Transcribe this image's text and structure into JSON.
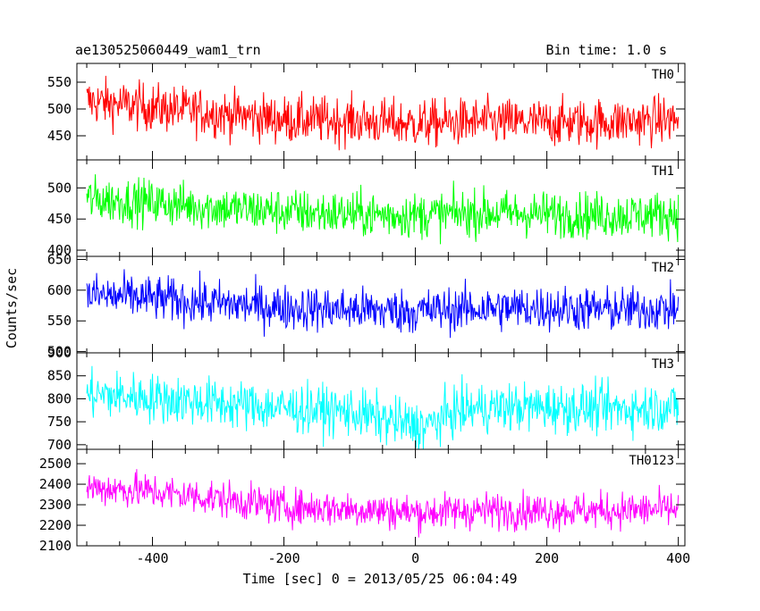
{
  "chart_data": {
    "type": "line",
    "title_left": "ae130525060449_wam1_trn",
    "title_right": "Bin time: 1.0 s",
    "xlabel": "Time [sec] 0 = 2013/05/25 06:04:49",
    "ylabel": "Counts/sec",
    "xlim": [
      -515,
      410
    ],
    "xticks": [
      -400,
      -200,
      0,
      200,
      400
    ],
    "x_range": [
      -500,
      400
    ],
    "bin_time": 1.0,
    "panels": [
      {
        "name": "TH0",
        "color": "#ff0000",
        "ylim": [
          405,
          585
        ],
        "yticks": [
          450,
          500,
          550
        ],
        "trend": [
          [
            -500,
            515
          ],
          [
            -420,
            505
          ],
          [
            -300,
            492
          ],
          [
            -200,
            480
          ],
          [
            -100,
            478
          ],
          [
            0,
            472
          ],
          [
            100,
            476
          ],
          [
            200,
            474
          ],
          [
            300,
            476
          ],
          [
            400,
            480
          ]
        ],
        "noise_amplitude": 40
      },
      {
        "name": "TH1",
        "color": "#00ff00",
        "ylim": [
          390,
          545
        ],
        "yticks": [
          400,
          450,
          500
        ],
        "trend": [
          [
            -500,
            482
          ],
          [
            -420,
            478
          ],
          [
            -300,
            468
          ],
          [
            -200,
            462
          ],
          [
            -100,
            458
          ],
          [
            0,
            456
          ],
          [
            100,
            460
          ],
          [
            200,
            458
          ],
          [
            300,
            456
          ],
          [
            400,
            458
          ]
        ],
        "noise_amplitude": 33
      },
      {
        "name": "TH2",
        "color": "#0000ff",
        "ylim": [
          498,
          655
        ],
        "yticks": [
          500,
          550,
          600,
          650
        ],
        "trend": [
          [
            -500,
            592
          ],
          [
            -420,
            588
          ],
          [
            -300,
            578
          ],
          [
            -200,
            572
          ],
          [
            -100,
            568
          ],
          [
            0,
            566
          ],
          [
            100,
            570
          ],
          [
            200,
            571
          ],
          [
            300,
            568
          ],
          [
            400,
            570
          ]
        ],
        "noise_amplitude": 33
      },
      {
        "name": "TH3",
        "color": "#00ffff",
        "ylim": [
          690,
          900
        ],
        "yticks": [
          700,
          750,
          800,
          850,
          900
        ],
        "trend": [
          [
            -500,
            810
          ],
          [
            -420,
            804
          ],
          [
            -300,
            790
          ],
          [
            -200,
            780
          ],
          [
            -100,
            772
          ],
          [
            0,
            740
          ],
          [
            20,
            742
          ],
          [
            60,
            772
          ],
          [
            100,
            780
          ],
          [
            200,
            782
          ],
          [
            300,
            778
          ],
          [
            400,
            782
          ]
        ],
        "noise_amplitude": 48
      },
      {
        "name": "TH0123",
        "color": "#ff00ff",
        "ylim": [
          2100,
          2570
        ],
        "yticks": [
          2100,
          2200,
          2300,
          2400,
          2500
        ],
        "trend": [
          [
            -500,
            2385
          ],
          [
            -420,
            2370
          ],
          [
            -300,
            2330
          ],
          [
            -200,
            2290
          ],
          [
            -100,
            2280
          ],
          [
            0,
            2262
          ],
          [
            100,
            2272
          ],
          [
            200,
            2270
          ],
          [
            300,
            2272
          ],
          [
            400,
            2278
          ]
        ],
        "noise_amplitude": 80
      }
    ]
  }
}
